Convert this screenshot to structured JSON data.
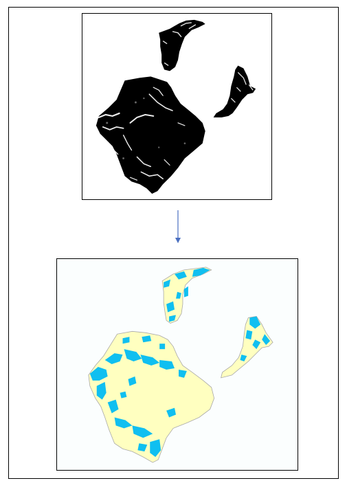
{
  "figure": {
    "top_panel": {
      "kind": "grayscale-raster",
      "background_color": "#ffffff",
      "land_color": "#000000",
      "highlight_color": "#ffffff"
    },
    "arrow": {
      "direction": "down",
      "color": "#4a6fc0"
    },
    "bottom_panel": {
      "kind": "classified-map",
      "background_color": "#fbfefe",
      "land_color": "#ffffc0",
      "land_outline_color": "#a8a8a8",
      "class_color": "#10bff0"
    }
  }
}
